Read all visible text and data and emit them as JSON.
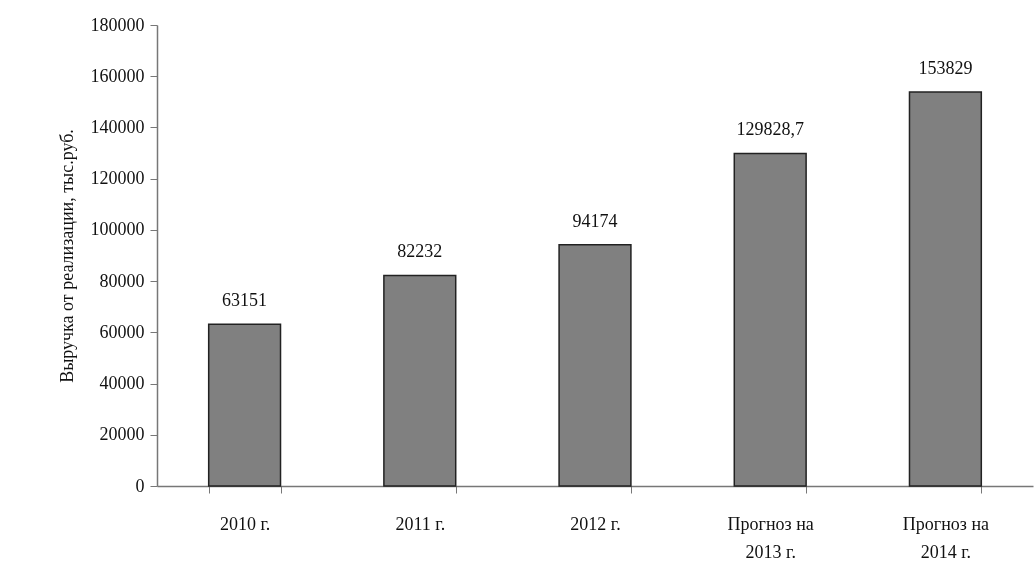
{
  "chart_data": {
    "type": "bar",
    "ylabel": "Выручка от реализации, тыс.руб.",
    "categories": [
      "2010 г.",
      "2011 г.",
      "2012 г.",
      "Прогноз на 2013 г.",
      "Прогноз на 2014 г."
    ],
    "values": [
      63151,
      82232,
      94174,
      129828.7,
      153829
    ],
    "value_labels": [
      "63151",
      "82232",
      "94174",
      "129828,7",
      "153829"
    ],
    "color": "#808080",
    "ylim": [
      0,
      180000
    ],
    "yticks": [
      0,
      20000,
      40000,
      60000,
      80000,
      100000,
      120000,
      140000,
      160000,
      180000
    ]
  }
}
